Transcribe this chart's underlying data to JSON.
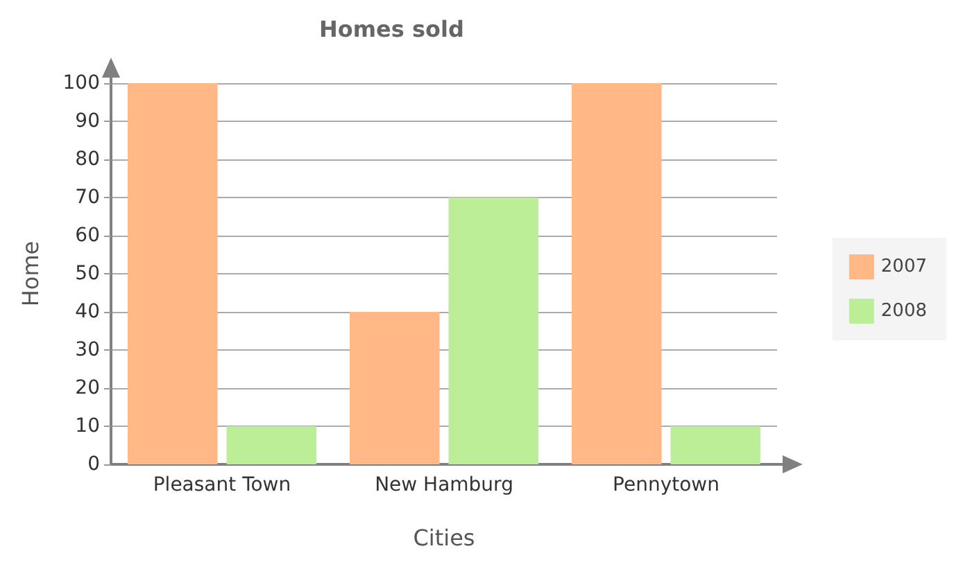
{
  "chart_data": {
    "type": "bar",
    "title": "Homes sold",
    "xlabel": "Cities",
    "ylabel": "Home",
    "categories": [
      "Pleasant Town",
      "New Hamburg",
      "Pennytown"
    ],
    "series": [
      {
        "name": "2007",
        "color": "#ffb886",
        "values": [
          100,
          40,
          100
        ]
      },
      {
        "name": "2008",
        "color": "#bbee96",
        "values": [
          10,
          70,
          10
        ]
      }
    ],
    "ylim": [
      0,
      100
    ],
    "yticks": [
      0,
      10,
      20,
      30,
      40,
      50,
      60,
      70,
      80,
      90,
      100
    ],
    "grid": "y",
    "legend": "right"
  }
}
